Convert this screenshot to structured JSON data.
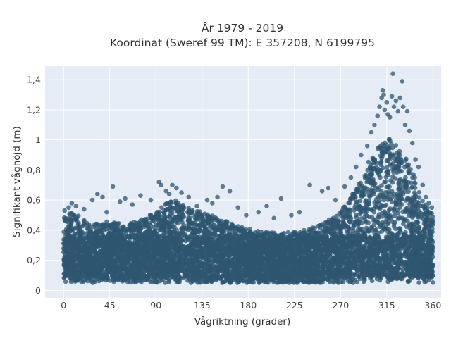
{
  "chart_data": {
    "type": "scatter",
    "title": "År 1979 - 2019",
    "subtitle": "Koordinat (Sweref 99 TM): E 357208, N 6199795",
    "xlabel": "Vågriktning (grader)",
    "ylabel": "Signifikant våghöjd (m)",
    "xlim": [
      -18,
      368
    ],
    "ylim": [
      -0.05,
      1.49
    ],
    "grid": true,
    "legend": "none",
    "xticks": [
      0,
      45,
      90,
      135,
      180,
      225,
      270,
      315,
      360
    ],
    "xtick_labels": [
      "0",
      "45",
      "90",
      "135",
      "180",
      "225",
      "270",
      "315",
      "360"
    ],
    "yticks": [
      0,
      0.2,
      0.4,
      0.6,
      0.8,
      1.0,
      1.2,
      1.4
    ],
    "ytick_labels": [
      "0",
      "0,2",
      "0,4",
      "0,6",
      "0,8",
      "1",
      "1,2",
      "1,4"
    ],
    "point_color": "#2e5670",
    "background_color": "#e5ecf6",
    "grid_color": "#ffffff",
    "envelope": {
      "direction": [
        0,
        10,
        20,
        30,
        45,
        60,
        75,
        90,
        100,
        110,
        120,
        135,
        150,
        165,
        180,
        195,
        210,
        225,
        240,
        255,
        270,
        280,
        290,
        300,
        310,
        315,
        320,
        330,
        340,
        350,
        360
      ],
      "max_height": [
        0.5,
        0.52,
        0.47,
        0.44,
        0.46,
        0.44,
        0.47,
        0.52,
        0.58,
        0.6,
        0.55,
        0.52,
        0.49,
        0.44,
        0.41,
        0.39,
        0.38,
        0.39,
        0.41,
        0.45,
        0.53,
        0.62,
        0.75,
        0.9,
        0.98,
        1.02,
        1.0,
        0.92,
        0.8,
        0.6,
        0.5
      ],
      "min_height": 0.05
    },
    "outliers": [
      {
        "x": 1,
        "y": 0.53
      },
      {
        "x": 5,
        "y": 0.55
      },
      {
        "x": 8,
        "y": 0.58
      },
      {
        "x": 12,
        "y": 0.56
      },
      {
        "x": 20,
        "y": 0.54
      },
      {
        "x": 28,
        "y": 0.6
      },
      {
        "x": 33,
        "y": 0.64
      },
      {
        "x": 38,
        "y": 0.62
      },
      {
        "x": 42,
        "y": 0.52
      },
      {
        "x": 48,
        "y": 0.69
      },
      {
        "x": 55,
        "y": 0.59
      },
      {
        "x": 60,
        "y": 0.61
      },
      {
        "x": 67,
        "y": 0.57
      },
      {
        "x": 75,
        "y": 0.63
      },
      {
        "x": 85,
        "y": 0.6
      },
      {
        "x": 93,
        "y": 0.72
      },
      {
        "x": 95,
        "y": 0.7
      },
      {
        "x": 100,
        "y": 0.66
      },
      {
        "x": 103,
        "y": 0.64
      },
      {
        "x": 106,
        "y": 0.7
      },
      {
        "x": 110,
        "y": 0.68
      },
      {
        "x": 115,
        "y": 0.65
      },
      {
        "x": 122,
        "y": 0.62
      },
      {
        "x": 130,
        "y": 0.56
      },
      {
        "x": 140,
        "y": 0.6
      },
      {
        "x": 145,
        "y": 0.58
      },
      {
        "x": 150,
        "y": 0.62
      },
      {
        "x": 155,
        "y": 0.69
      },
      {
        "x": 162,
        "y": 0.66
      },
      {
        "x": 170,
        "y": 0.55
      },
      {
        "x": 178,
        "y": 0.5
      },
      {
        "x": 190,
        "y": 0.52
      },
      {
        "x": 198,
        "y": 0.56
      },
      {
        "x": 205,
        "y": 0.48
      },
      {
        "x": 212,
        "y": 0.61
      },
      {
        "x": 222,
        "y": 0.5
      },
      {
        "x": 230,
        "y": 0.52
      },
      {
        "x": 240,
        "y": 0.7
      },
      {
        "x": 252,
        "y": 0.66
      },
      {
        "x": 258,
        "y": 0.68
      },
      {
        "x": 265,
        "y": 0.6
      },
      {
        "x": 274,
        "y": 0.69
      },
      {
        "x": 280,
        "y": 0.75
      },
      {
        "x": 285,
        "y": 0.82
      },
      {
        "x": 290,
        "y": 0.9
      },
      {
        "x": 296,
        "y": 0.96
      },
      {
        "x": 300,
        "y": 1.05
      },
      {
        "x": 303,
        "y": 1.1
      },
      {
        "x": 306,
        "y": 1.16
      },
      {
        "x": 308,
        "y": 1.22
      },
      {
        "x": 310,
        "y": 1.28
      },
      {
        "x": 311,
        "y": 1.33
      },
      {
        "x": 312,
        "y": 1.3
      },
      {
        "x": 313,
        "y": 1.2
      },
      {
        "x": 315,
        "y": 1.25
      },
      {
        "x": 316,
        "y": 1.17
      },
      {
        "x": 318,
        "y": 1.15
      },
      {
        "x": 320,
        "y": 1.29
      },
      {
        "x": 321,
        "y": 1.44
      },
      {
        "x": 322,
        "y": 1.22
      },
      {
        "x": 324,
        "y": 1.26
      },
      {
        "x": 326,
        "y": 1.19
      },
      {
        "x": 328,
        "y": 1.28
      },
      {
        "x": 330,
        "y": 1.39
      },
      {
        "x": 331,
        "y": 1.22
      },
      {
        "x": 333,
        "y": 1.1
      },
      {
        "x": 335,
        "y": 1.19
      },
      {
        "x": 337,
        "y": 1.06
      },
      {
        "x": 340,
        "y": 0.98
      },
      {
        "x": 343,
        "y": 0.87
      },
      {
        "x": 346,
        "y": 0.82
      },
      {
        "x": 350,
        "y": 0.7
      },
      {
        "x": 353,
        "y": 0.62
      },
      {
        "x": 356,
        "y": 0.58
      },
      {
        "x": 359,
        "y": 0.55
      }
    ]
  }
}
